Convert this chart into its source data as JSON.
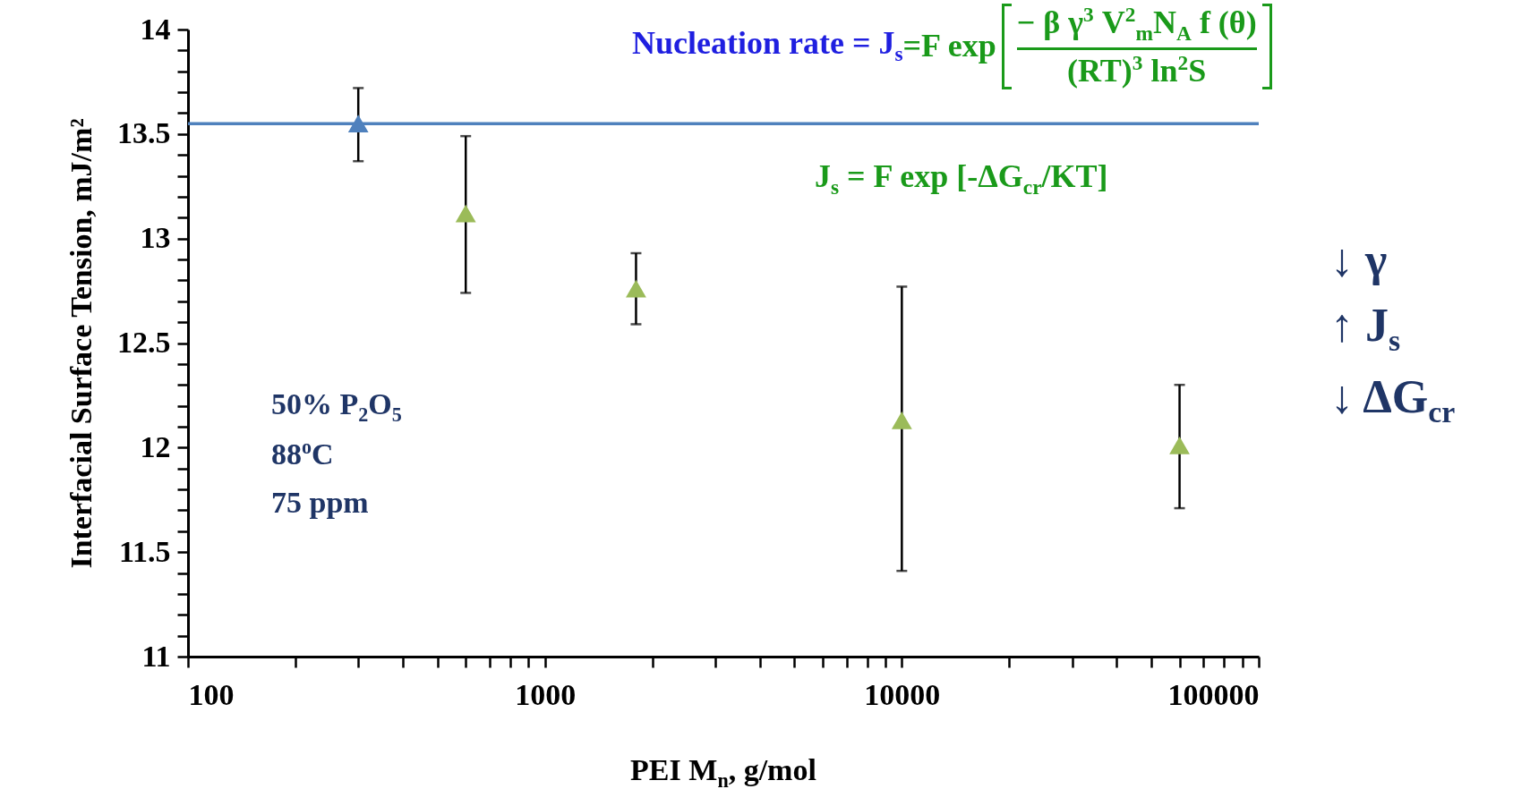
{
  "chart_data": {
    "type": "scatter",
    "xlabel": "PEI M$_{n}$, g/mol",
    "ylabel": "Interfacial Surface Tension, mJ/m²",
    "log": "x",
    "grid": false,
    "marker": "triangle",
    "xlim": [
      100,
      100000
    ],
    "xticks": [
      100,
      {
        "value": 200,
        "label": null
      },
      {
        "value": 300,
        "label": null
      },
      {
        "value": 400,
        "label": null
      },
      {
        "value": 500,
        "label": null
      },
      {
        "value": 600,
        "label": null
      },
      {
        "value": 700,
        "label": null
      },
      {
        "value": 800,
        "label": null
      },
      {
        "value": 900,
        "label": null
      },
      1000,
      {
        "value": 2000,
        "label": null
      },
      {
        "value": 3000,
        "label": null
      },
      {
        "value": 4000,
        "label": null
      },
      {
        "value": 5000,
        "label": null
      },
      {
        "value": 6000,
        "label": null
      },
      {
        "value": 7000,
        "label": null
      },
      {
        "value": 8000,
        "label": null
      },
      {
        "value": 9000,
        "label": null
      },
      10000,
      {
        "value": 20000,
        "label": null
      },
      {
        "value": 30000,
        "label": null
      },
      {
        "value": 40000,
        "label": null
      },
      {
        "value": 50000,
        "label": null
      },
      {
        "value": 60000,
        "label": null
      },
      {
        "value": 70000,
        "label": null
      },
      {
        "value": 80000,
        "label": null
      },
      {
        "value": 90000,
        "label": null
      },
      100000
    ],
    "ylim": [
      11,
      14
    ],
    "yticks": [
      11,
      {
        "value": 11.1,
        "label": null
      },
      {
        "value": 11.2,
        "label": null
      },
      {
        "value": 11.3,
        "label": null
      },
      {
        "value": 11.4,
        "label": null
      },
      11.5,
      {
        "value": 11.6,
        "label": null
      },
      {
        "value": 11.7,
        "label": null
      },
      {
        "value": 11.8,
        "label": null
      },
      {
        "value": 11.9,
        "label": null
      },
      12,
      {
        "value": 12.1,
        "label": null
      },
      {
        "value": 12.2,
        "label": null
      },
      {
        "value": 12.3,
        "label": null
      },
      {
        "value": 12.4,
        "label": null
      },
      12.5,
      {
        "value": 12.6,
        "label": null
      },
      {
        "value": 12.7,
        "label": null
      },
      {
        "value": 12.8,
        "label": null
      },
      {
        "value": 12.9,
        "label": null
      },
      13,
      {
        "value": 13.1,
        "label": null
      },
      {
        "value": 13.2,
        "label": null
      },
      {
        "value": 13.3,
        "label": null
      },
      {
        "value": 13.4,
        "label": null
      },
      13.5,
      {
        "value": 13.6,
        "label": null
      },
      {
        "value": 13.7,
        "label": null
      },
      {
        "value": 13.8,
        "label": null
      },
      {
        "value": 13.9,
        "label": null
      },
      14
    ],
    "series": [
      {
        "color": "#4f81bd",
        "x": [
          300
        ],
        "values": [
          13.55
        ],
        "errors": [
          [
            13.37,
            13.72
          ]
        ]
      },
      {
        "color": "#9bbb59",
        "x": [
          600,
          1800,
          10000,
          60000
        ],
        "values": [
          13.12,
          12.76,
          12.13,
          12.01
        ],
        "errors": [
          [
            12.74,
            13.49
          ],
          [
            12.59,
            12.93
          ],
          [
            11.41,
            12.77
          ],
          [
            11.71,
            12.3
          ]
        ]
      }
    ],
    "ref_lines": [
      {
        "axis": "y",
        "value": 13.55,
        "color": "#4f81bd"
      }
    ],
    "annotations": [
      "Nucleation rate = J$_{s}$",
      "=F exp",
      "− β γ$^{3}$ V$^{2}$$_{m}$N$_{A}$  f (θ)",
      "(RT)$^{3}$ ln$^{2}$S",
      "J$_{s}$ = F exp [-ΔG$_{cr}$/KT]",
      "50% P$_{2}$O$_{5}$",
      "88$^{o}$C",
      "75 ppm",
      "↓ γ",
      "↑ J$_{s}$",
      "↓ ΔG$_{cr}$"
    ]
  }
}
